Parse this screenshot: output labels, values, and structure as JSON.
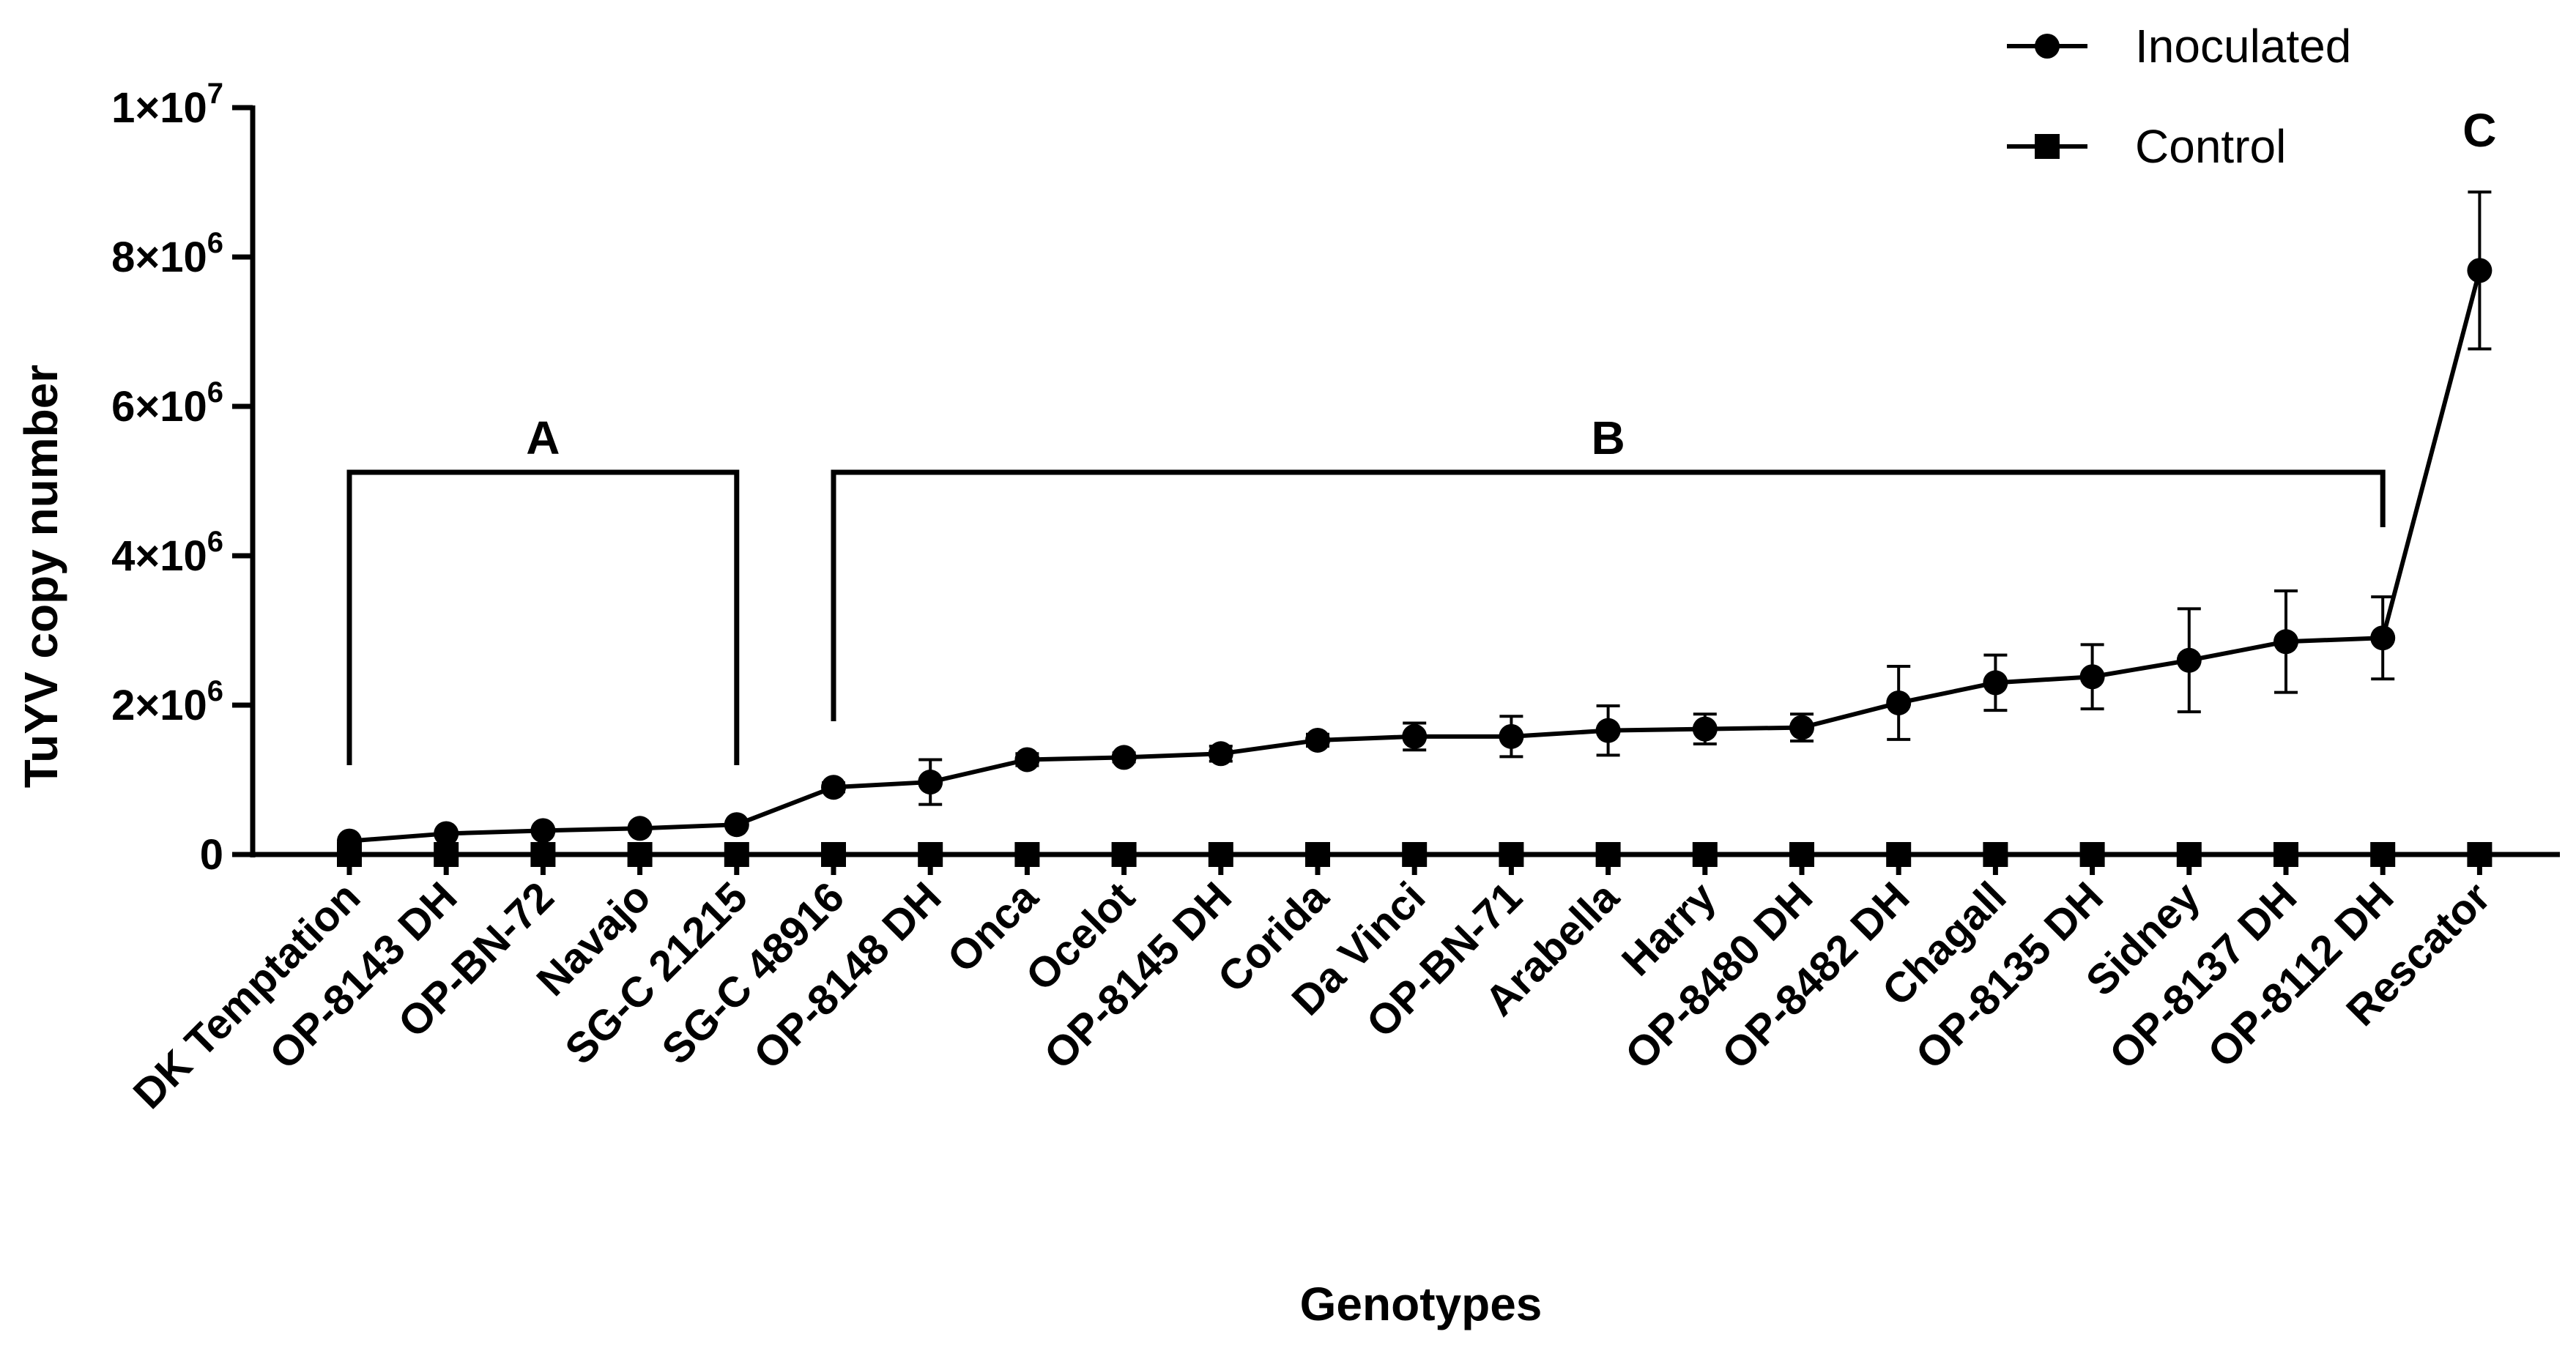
{
  "chart_data": {
    "type": "line",
    "title": "",
    "xlabel": "Genotypes",
    "ylabel": "TuYV copy number",
    "ylim": [
      0,
      10000000
    ],
    "y_ticks": [
      {
        "value": 0,
        "base": "0",
        "exp": ""
      },
      {
        "value": 2000000,
        "base": "2×10",
        "exp": "6"
      },
      {
        "value": 4000000,
        "base": "4×10",
        "exp": "6"
      },
      {
        "value": 6000000,
        "base": "6×10",
        "exp": "6"
      },
      {
        "value": 8000000,
        "base": "8×10",
        "exp": "6"
      },
      {
        "value": 10000000,
        "base": "1×10",
        "exp": "7"
      }
    ],
    "categories": [
      "DK Temptation",
      "OP-8143 DH",
      "OP-BN-72",
      "Navajo",
      "SG-C 21215",
      "SG-C 48916",
      "OP-8148 DH",
      "Onca",
      "Ocelot",
      "OP-8145 DH",
      "Corida",
      "Da Vinci",
      "OP-BN-71",
      "Arabella",
      "Harry",
      "OP-8480 DH",
      "OP-8482 DH",
      "Chagall",
      "OP-8135 DH",
      "Sidney",
      "OP-8137 DH",
      "OP-8112 DH",
      "Rescator"
    ],
    "series": [
      {
        "name": "Inoculated",
        "marker": "circle",
        "values": [
          180000,
          280000,
          320000,
          350000,
          400000,
          900000,
          970000,
          1270000,
          1300000,
          1350000,
          1530000,
          1580000,
          1580000,
          1660000,
          1680000,
          1700000,
          2030000,
          2300000,
          2380000,
          2600000,
          2850000,
          2900000,
          7820000
        ],
        "errors": [
          30000,
          30000,
          30000,
          40000,
          40000,
          60000,
          300000,
          80000,
          60000,
          100000,
          80000,
          180000,
          270000,
          330000,
          200000,
          180000,
          490000,
          370000,
          430000,
          690000,
          680000,
          550000,
          1050000
        ]
      },
      {
        "name": "Control",
        "marker": "square",
        "values": [
          0,
          0,
          0,
          0,
          0,
          0,
          0,
          0,
          0,
          0,
          0,
          0,
          0,
          0,
          0,
          0,
          0,
          0,
          0,
          0,
          0,
          0,
          0
        ]
      }
    ],
    "brackets": [
      {
        "label": "A",
        "from": "DK Temptation",
        "to": "SG-C 21215"
      },
      {
        "label": "B",
        "from": "SG-C 48916",
        "to": "OP-8112 DH"
      }
    ],
    "annotations": [
      {
        "label": "C",
        "at": "Rescator"
      }
    ],
    "legend_position": "top-right"
  }
}
